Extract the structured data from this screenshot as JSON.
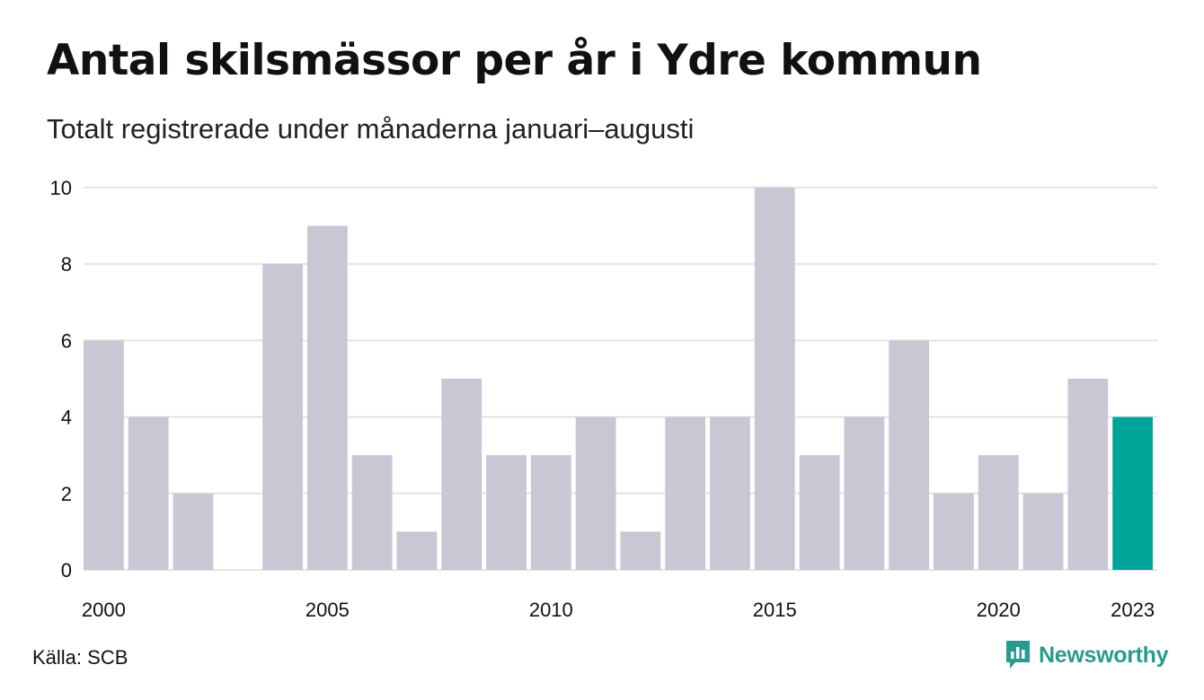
{
  "title": "Antal skilsmässor per år i Ydre kommun",
  "subtitle": "Totalt registrerade under månaderna januari–augusti",
  "source": "Källa: SCB",
  "brand": "Newsworthy",
  "colors": {
    "bar": "#c9c7d3",
    "highlight": "#00a398",
    "grid": "#e3e3e3",
    "text": "#111111",
    "brand": "#2a9a8f"
  },
  "chart_data": {
    "type": "bar",
    "title": "Antal skilsmässor per år i Ydre kommun",
    "subtitle": "Totalt registrerade under månaderna januari–augusti",
    "xlabel": "",
    "ylabel": "",
    "ylim": [
      0,
      10
    ],
    "yticks": [
      "0",
      "2",
      "4",
      "6",
      "8",
      "10"
    ],
    "grid": true,
    "categories": [
      "2000",
      "2001",
      "2002",
      "2003",
      "2004",
      "2005",
      "2006",
      "2007",
      "2008",
      "2009",
      "2010",
      "2011",
      "2012",
      "2013",
      "2014",
      "2015",
      "2016",
      "2017",
      "2018",
      "2019",
      "2020",
      "2021",
      "2022",
      "2023"
    ],
    "values": [
      6,
      4,
      2,
      0,
      8,
      9,
      3,
      1,
      5,
      3,
      3,
      4,
      1,
      4,
      4,
      10,
      3,
      4,
      6,
      2,
      3,
      2,
      5,
      4
    ],
    "xtick_labels": [
      "2000",
      "2005",
      "2010",
      "2015",
      "2020",
      "2023"
    ],
    "highlight_category": "2023"
  }
}
